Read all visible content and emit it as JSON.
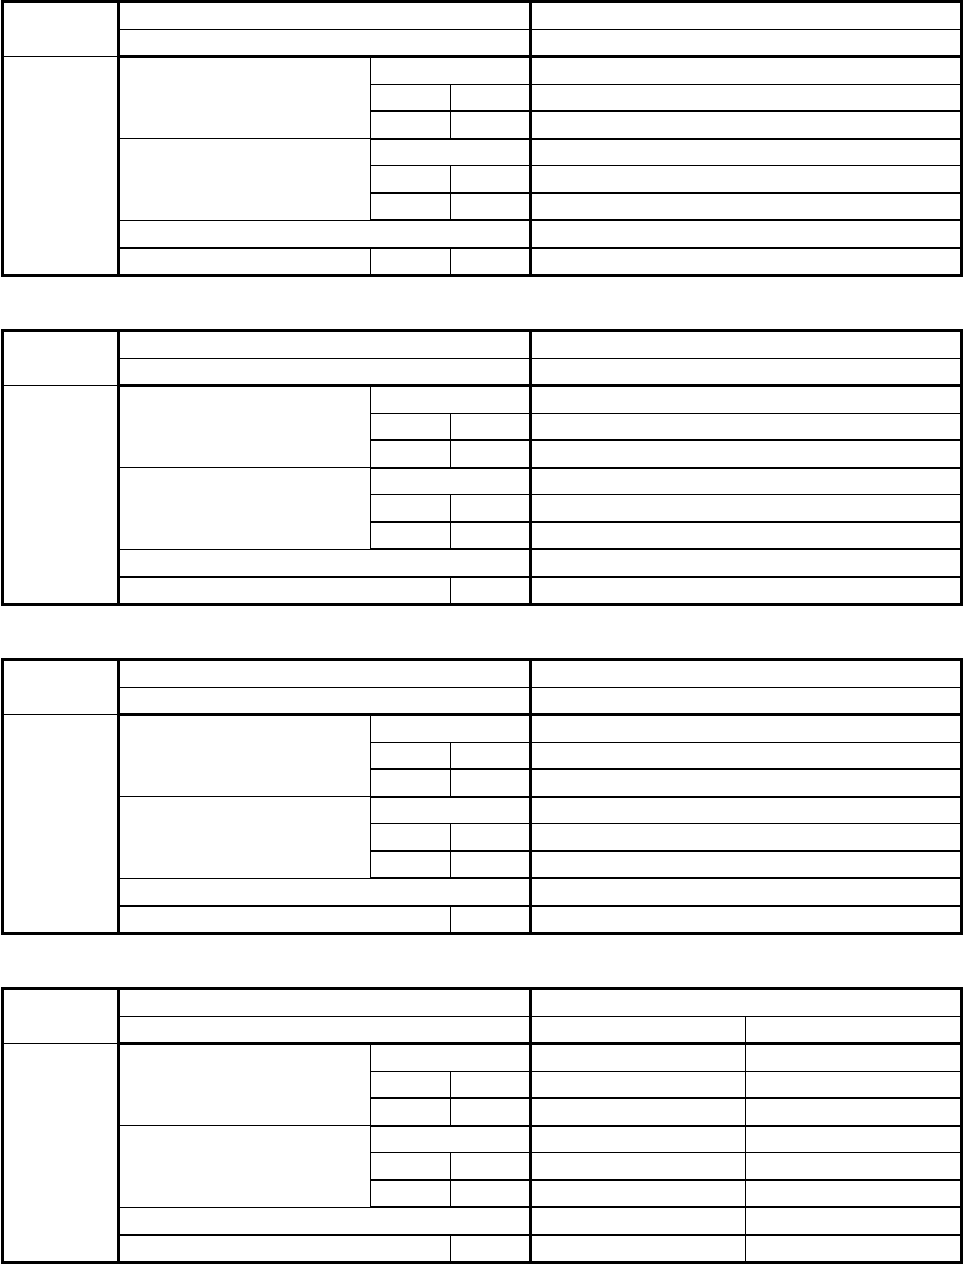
{
  "document": {
    "tables": [
      {
        "rows": []
      },
      {
        "rows": []
      },
      {
        "rows": []
      },
      {
        "rows": []
      }
    ]
  }
}
